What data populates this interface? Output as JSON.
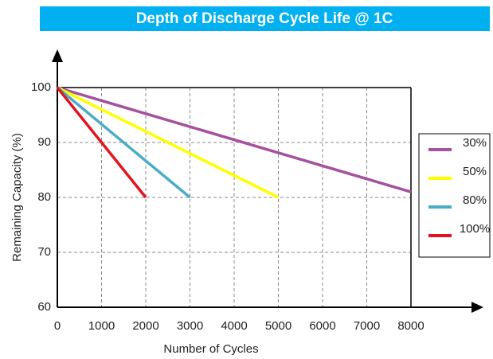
{
  "chart_data": {
    "type": "line",
    "title": "Depth of Discharge Cycle Life @ 1C",
    "xlabel": "Number of Cycles",
    "ylabel": "Remaining Capacity (%)",
    "series": [
      {
        "name": "30%",
        "color": "#a5519f",
        "x": [
          0,
          8000
        ],
        "values": [
          100,
          81
        ]
      },
      {
        "name": "50%",
        "color": "#ffff00",
        "x": [
          0,
          5000
        ],
        "values": [
          100,
          80
        ]
      },
      {
        "name": "80%",
        "color": "#4bacc6",
        "x": [
          0,
          3000
        ],
        "values": [
          100,
          80
        ]
      },
      {
        "name": "100%",
        "color": "#e3141e",
        "x": [
          0,
          2000
        ],
        "values": [
          100,
          80
        ]
      }
    ],
    "xlim": [
      0,
      8000
    ],
    "xticks": [
      0,
      1000,
      2000,
      3000,
      4000,
      5000,
      6000,
      7000,
      8000
    ],
    "ylim": [
      60,
      100
    ],
    "yticks": [
      60,
      70,
      80,
      90,
      100
    ],
    "grid": true,
    "legend": "right",
    "title_background": "#00b0f0"
  }
}
